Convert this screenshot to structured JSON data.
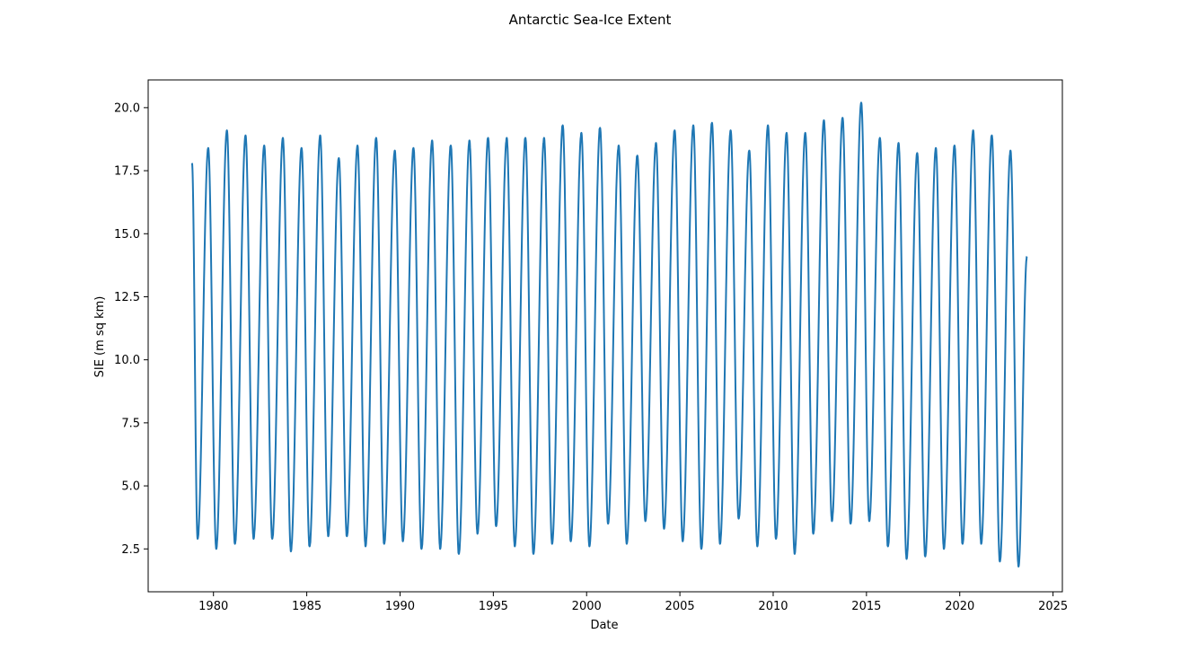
{
  "chart_data": {
    "type": "line",
    "title": "Antarctic Sea-Ice Extent",
    "xlabel": "Date",
    "ylabel": "SIE (m sq km)",
    "xlim": [
      1976.5,
      2025.5
    ],
    "ylim": [
      0.8,
      21.1
    ],
    "x_ticks": [
      1980,
      1985,
      1990,
      1995,
      2000,
      2005,
      2010,
      2015,
      2020,
      2025
    ],
    "y_ticks": [
      2.5,
      5.0,
      7.5,
      10.0,
      12.5,
      15.0,
      17.5,
      20.0
    ],
    "grid": false,
    "line_color": "#1f77b4",
    "series": [
      {
        "name": "",
        "start": 1978.85,
        "start_value": 17.8,
        "end": 2023.6,
        "end_value": 14.1,
        "annual_min_date": "late February",
        "annual_max_date": "late September",
        "annual_minima": [
          {
            "year": 1979,
            "value": 2.9
          },
          {
            "year": 1980,
            "value": 2.5
          },
          {
            "year": 1981,
            "value": 2.7
          },
          {
            "year": 1982,
            "value": 2.9
          },
          {
            "year": 1983,
            "value": 2.9
          },
          {
            "year": 1984,
            "value": 2.4
          },
          {
            "year": 1985,
            "value": 2.6
          },
          {
            "year": 1986,
            "value": 3.0
          },
          {
            "year": 1987,
            "value": 3.0
          },
          {
            "year": 1988,
            "value": 2.6
          },
          {
            "year": 1989,
            "value": 2.7
          },
          {
            "year": 1990,
            "value": 2.8
          },
          {
            "year": 1991,
            "value": 2.5
          },
          {
            "year": 1992,
            "value": 2.5
          },
          {
            "year": 1993,
            "value": 2.3
          },
          {
            "year": 1994,
            "value": 3.1
          },
          {
            "year": 1995,
            "value": 3.4
          },
          {
            "year": 1996,
            "value": 2.6
          },
          {
            "year": 1997,
            "value": 2.3
          },
          {
            "year": 1998,
            "value": 2.7
          },
          {
            "year": 1999,
            "value": 2.8
          },
          {
            "year": 2000,
            "value": 2.6
          },
          {
            "year": 2001,
            "value": 3.5
          },
          {
            "year": 2002,
            "value": 2.7
          },
          {
            "year": 2003,
            "value": 3.6
          },
          {
            "year": 2004,
            "value": 3.3
          },
          {
            "year": 2005,
            "value": 2.8
          },
          {
            "year": 2006,
            "value": 2.5
          },
          {
            "year": 2007,
            "value": 2.7
          },
          {
            "year": 2008,
            "value": 3.7
          },
          {
            "year": 2009,
            "value": 2.6
          },
          {
            "year": 2010,
            "value": 2.9
          },
          {
            "year": 2011,
            "value": 2.3
          },
          {
            "year": 2012,
            "value": 3.1
          },
          {
            "year": 2013,
            "value": 3.6
          },
          {
            "year": 2014,
            "value": 3.5
          },
          {
            "year": 2015,
            "value": 3.6
          },
          {
            "year": 2016,
            "value": 2.6
          },
          {
            "year": 2017,
            "value": 2.1
          },
          {
            "year": 2018,
            "value": 2.2
          },
          {
            "year": 2019,
            "value": 2.5
          },
          {
            "year": 2020,
            "value": 2.7
          },
          {
            "year": 2021,
            "value": 2.7
          },
          {
            "year": 2022,
            "value": 2.0
          },
          {
            "year": 2023,
            "value": 1.8
          }
        ],
        "annual_maxima": [
          {
            "year": 1979,
            "value": 18.4
          },
          {
            "year": 1980,
            "value": 19.1
          },
          {
            "year": 1981,
            "value": 18.9
          },
          {
            "year": 1982,
            "value": 18.5
          },
          {
            "year": 1983,
            "value": 18.8
          },
          {
            "year": 1984,
            "value": 18.4
          },
          {
            "year": 1985,
            "value": 18.9
          },
          {
            "year": 1986,
            "value": 18.0
          },
          {
            "year": 1987,
            "value": 18.5
          },
          {
            "year": 1988,
            "value": 18.8
          },
          {
            "year": 1989,
            "value": 18.3
          },
          {
            "year": 1990,
            "value": 18.4
          },
          {
            "year": 1991,
            "value": 18.7
          },
          {
            "year": 1992,
            "value": 18.5
          },
          {
            "year": 1993,
            "value": 18.7
          },
          {
            "year": 1994,
            "value": 18.8
          },
          {
            "year": 1995,
            "value": 18.8
          },
          {
            "year": 1996,
            "value": 18.8
          },
          {
            "year": 1997,
            "value": 18.8
          },
          {
            "year": 1998,
            "value": 19.3
          },
          {
            "year": 1999,
            "value": 19.0
          },
          {
            "year": 2000,
            "value": 19.2
          },
          {
            "year": 2001,
            "value": 18.5
          },
          {
            "year": 2002,
            "value": 18.1
          },
          {
            "year": 2003,
            "value": 18.6
          },
          {
            "year": 2004,
            "value": 19.1
          },
          {
            "year": 2005,
            "value": 19.3
          },
          {
            "year": 2006,
            "value": 19.4
          },
          {
            "year": 2007,
            "value": 19.1
          },
          {
            "year": 2008,
            "value": 18.3
          },
          {
            "year": 2009,
            "value": 19.3
          },
          {
            "year": 2010,
            "value": 19.0
          },
          {
            "year": 2011,
            "value": 19.0
          },
          {
            "year": 2012,
            "value": 19.5
          },
          {
            "year": 2013,
            "value": 19.6
          },
          {
            "year": 2014,
            "value": 20.2
          },
          {
            "year": 2015,
            "value": 18.8
          },
          {
            "year": 2016,
            "value": 18.6
          },
          {
            "year": 2017,
            "value": 18.2
          },
          {
            "year": 2018,
            "value": 18.4
          },
          {
            "year": 2019,
            "value": 18.5
          },
          {
            "year": 2020,
            "value": 19.1
          },
          {
            "year": 2021,
            "value": 18.9
          },
          {
            "year": 2022,
            "value": 18.3
          }
        ]
      }
    ]
  }
}
